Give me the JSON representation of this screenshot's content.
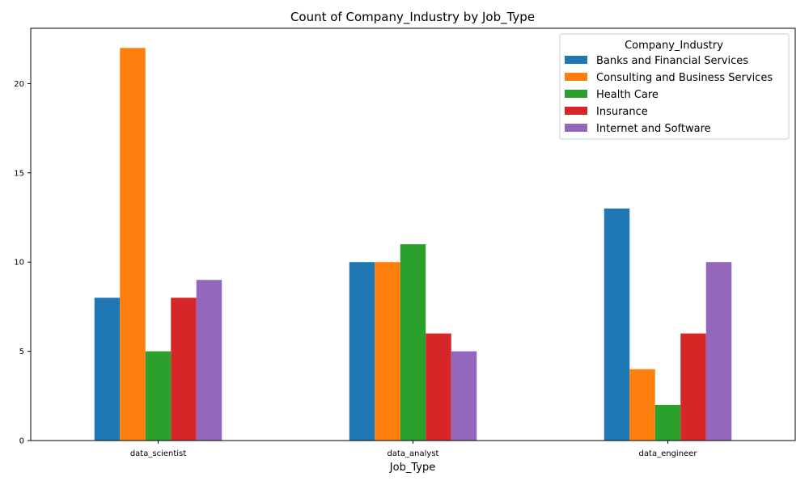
{
  "chart_data": {
    "type": "bar",
    "title": "Count of Company_Industry by Job_Type",
    "xlabel": "Job_Type",
    "ylabel": "",
    "categories": [
      "data_scientist",
      "data_analyst",
      "data_engineer"
    ],
    "ylim": [
      0,
      23.1
    ],
    "yticks": [
      0,
      5,
      10,
      15,
      20
    ],
    "grid": false,
    "legend": {
      "title": "Company_Industry",
      "placement": "top-right"
    },
    "series": [
      {
        "name": "Banks and Financial Services",
        "color": "#1f77b4",
        "values": [
          8,
          10,
          13
        ]
      },
      {
        "name": "Consulting and Business Services",
        "color": "#ff7f0e",
        "values": [
          22,
          10,
          4
        ]
      },
      {
        "name": "Health Care",
        "color": "#2ca02c",
        "values": [
          5,
          11,
          2
        ]
      },
      {
        "name": "Insurance",
        "color": "#d62728",
        "values": [
          8,
          6,
          6
        ]
      },
      {
        "name": "Internet and Software",
        "color": "#9467bd",
        "values": [
          9,
          5,
          10
        ]
      }
    ]
  }
}
